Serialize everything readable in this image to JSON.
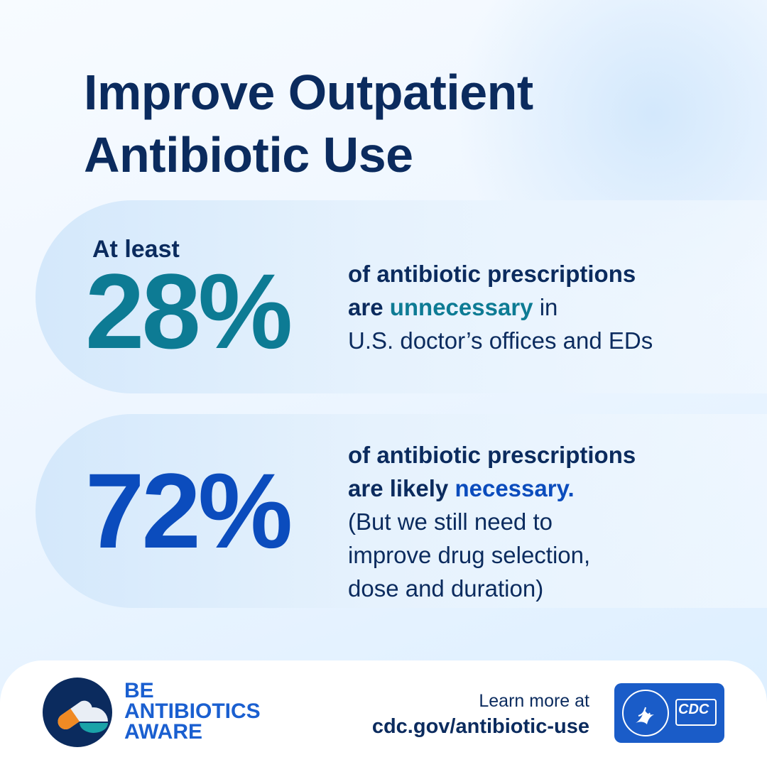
{
  "title": "Improve Outpatient Antibiotic Use",
  "stats": [
    {
      "lead": "At least",
      "value": "28%",
      "lines": [
        "of antibiotic prescriptions"
      ],
      "before": "are",
      "highlight": "unnecessary",
      "after": "in",
      "rest": [
        "U.S. doctor’s offices and EDs"
      ]
    },
    {
      "value": "72%",
      "lines": [
        "of antibiotic prescriptions"
      ],
      "before": "are likely",
      "highlight": "necessary.",
      "rest": [
        "(But we still need to",
        "improve drug selection,",
        "dose and duration)"
      ]
    }
  ],
  "footer": {
    "brand": [
      "BE",
      "ANTIBIOTICS",
      "AWARE"
    ],
    "learn_more": "Learn more at",
    "url": "cdc.gov/antibiotic-use",
    "logo_text": "CDC"
  }
}
